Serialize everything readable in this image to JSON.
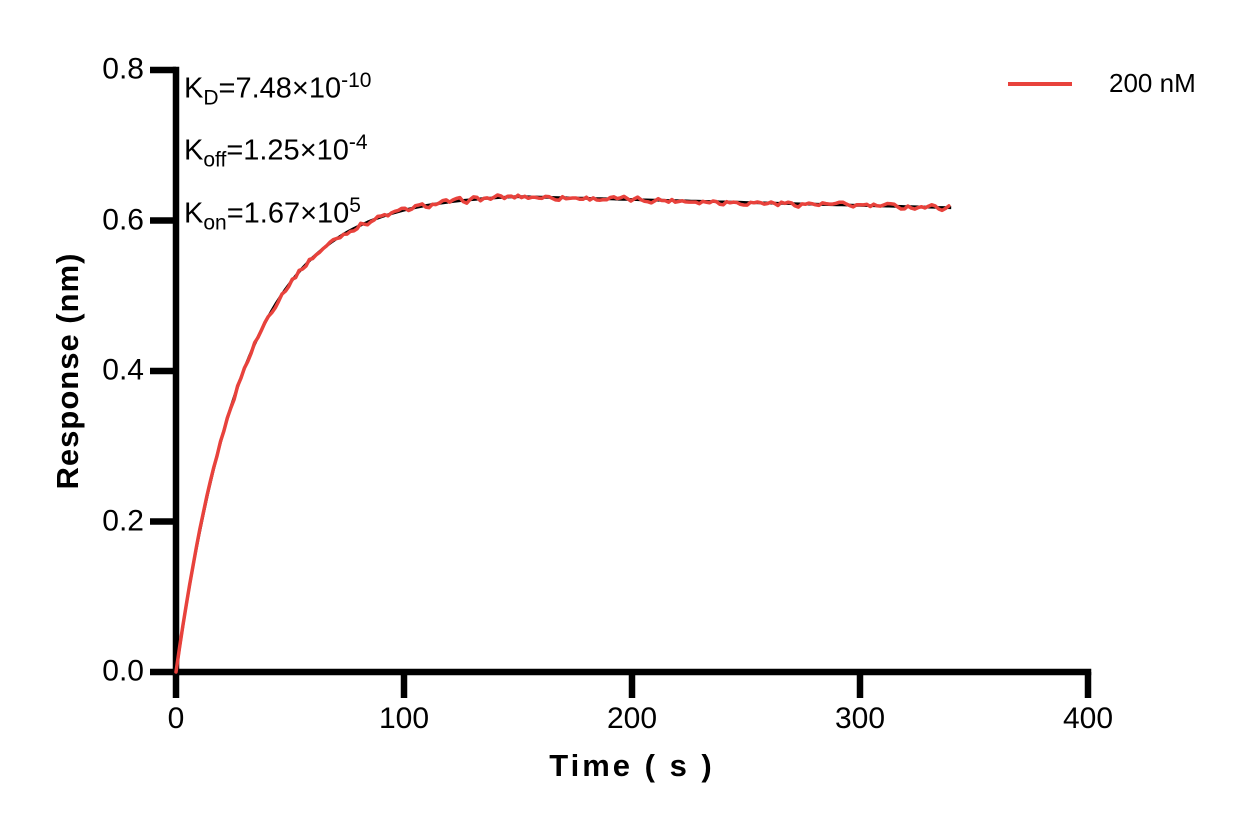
{
  "page": {
    "background": "#ffffff",
    "axis_color": "#000000",
    "accent_red": "#E8423C"
  },
  "annotations": {
    "lines": [
      {
        "base": "K",
        "sub": "D",
        "value": "=7.48×10",
        "exp": "-10"
      },
      {
        "base": "K",
        "sub": "off",
        "value": "=1.25×10",
        "exp": "-4"
      },
      {
        "base": "K",
        "sub": "on",
        "value": "=1.67×10",
        "exp": "5"
      }
    ]
  },
  "legend": {
    "items": [
      {
        "label": "200 nM",
        "color": "#E8423C"
      }
    ]
  },
  "chart_data": {
    "type": "line",
    "title": "",
    "xlabel": "Time ( s )",
    "ylabel": "Response (nm)",
    "xlim": [
      0,
      400
    ],
    "ylim": [
      0,
      0.8
    ],
    "xticks": [
      0,
      100,
      200,
      300,
      400
    ],
    "yticks": [
      0,
      0.2,
      0.4,
      0.6,
      0.8
    ],
    "grid": false,
    "legend_position": "top-right",
    "kinetics": {
      "KD": "7.48×10^-10",
      "Koff": "1.25×10^-4",
      "Kon": "1.67×10^5"
    },
    "series": [
      {
        "name": "200 nM",
        "color": "#E8423C",
        "role": "measured",
        "noise_amplitude": 0.0045,
        "line_width": 3.5
      },
      {
        "name": "fit",
        "color": "#000000",
        "role": "fitted",
        "noise_amplitude": 0,
        "line_width": 2.8
      }
    ],
    "model": {
      "rmax": 0.636,
      "kobs_per_s": 0.0335,
      "koff_per_s": 0.000125,
      "association_end_s": 150,
      "end_s": 340
    },
    "key_points": [
      [
        0,
        0
      ],
      [
        25,
        0.361
      ],
      [
        50,
        0.517
      ],
      [
        75,
        0.584
      ],
      [
        100,
        0.614
      ],
      [
        150,
        0.632
      ],
      [
        200,
        0.629
      ],
      [
        250,
        0.625
      ],
      [
        300,
        0.621
      ],
      [
        340,
        0.617
      ]
    ]
  }
}
